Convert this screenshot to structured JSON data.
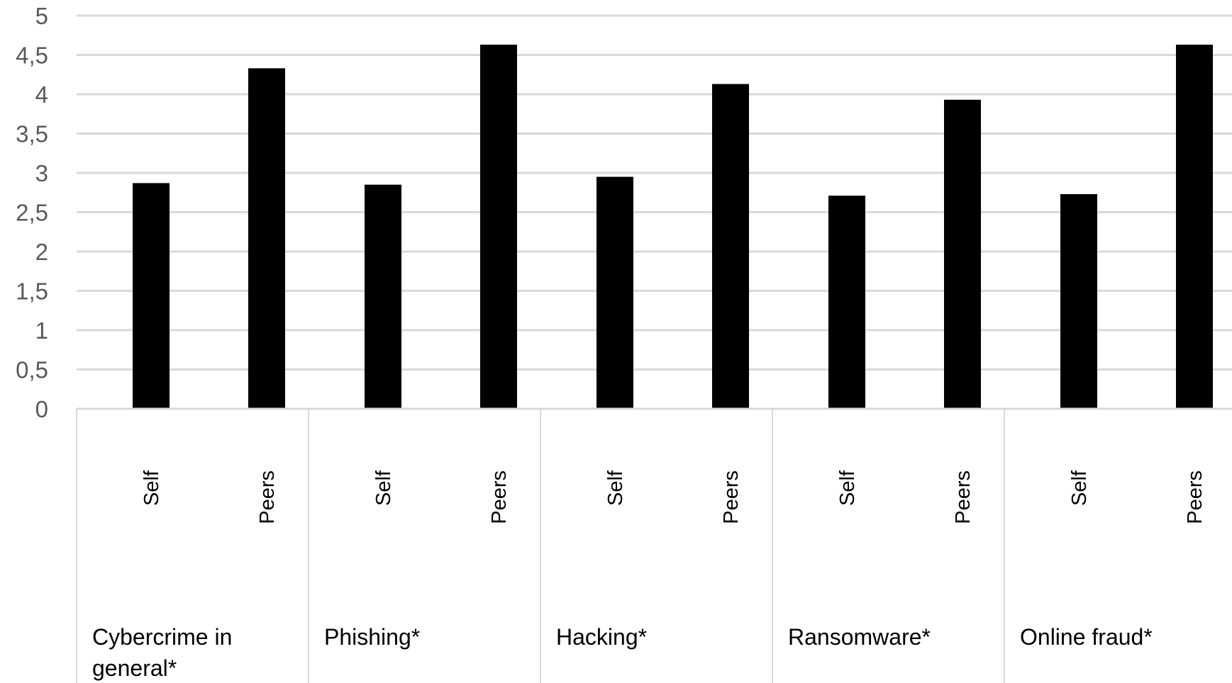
{
  "chart_data": {
    "type": "bar",
    "groups": [
      {
        "label_lines": [
          "Cybercrime in",
          "general*"
        ],
        "bars": [
          {
            "label": "Self",
            "value": 2.87
          },
          {
            "label": "Peers",
            "value": 4.33
          }
        ]
      },
      {
        "label_lines": [
          "Phishing*"
        ],
        "bars": [
          {
            "label": "Self",
            "value": 2.85
          },
          {
            "label": "Peers",
            "value": 4.63
          }
        ]
      },
      {
        "label_lines": [
          "Hacking*"
        ],
        "bars": [
          {
            "label": "Self",
            "value": 2.95
          },
          {
            "label": "Peers",
            "value": 4.13
          }
        ]
      },
      {
        "label_lines": [
          "Ransomware*"
        ],
        "bars": [
          {
            "label": "Self",
            "value": 2.71
          },
          {
            "label": "Peers",
            "value": 3.93
          }
        ]
      },
      {
        "label_lines": [
          "Online fraud*"
        ],
        "bars": [
          {
            "label": "Self",
            "value": 2.73
          },
          {
            "label": "Peers",
            "value": 4.63
          }
        ]
      }
    ],
    "y_ticks": [
      "0",
      "0,5",
      "1",
      "1,5",
      "2",
      "2,5",
      "3",
      "3,5",
      "4",
      "4,5",
      "5"
    ],
    "ylim": [
      0,
      5
    ],
    "grid": true,
    "bar_color": "#000000",
    "grid_color": "#d9d9d9",
    "tick_color": "#595959"
  }
}
